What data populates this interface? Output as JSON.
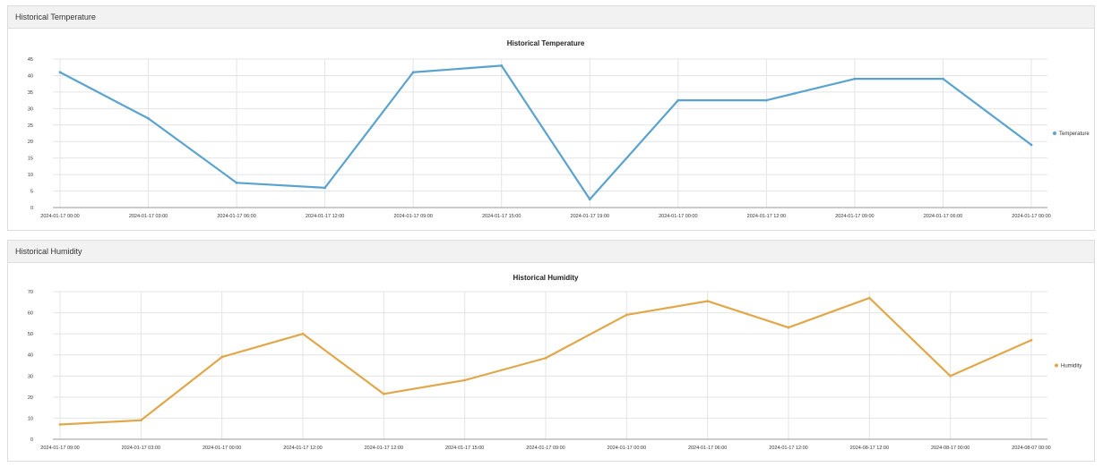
{
  "panels": {
    "temperature": {
      "header": "Historical Temperature"
    },
    "humidity": {
      "header": "Historical Humidity"
    }
  },
  "chart_data": [
    {
      "type": "line",
      "title": "Historical Temperature",
      "xlabel": "",
      "ylabel": "",
      "ylim": [
        0,
        45
      ],
      "yticks": [
        0,
        5,
        10,
        15,
        20,
        25,
        30,
        35,
        40,
        45
      ],
      "grid": true,
      "legend_position": "right",
      "categories": [
        "2024-01-17 00:00",
        "2024-01-17 03:00",
        "2024-01-17 06:00",
        "2024-01-17 12:00",
        "2024-01-17 09:00",
        "2024-01-17 15:00",
        "2024-01-17 19:00",
        "2024-01-17 00:00",
        "2024-01-17 12:00",
        "2024-01-17 09:00",
        "2024-01-17 06:00",
        "2024-01-17 00:00"
      ],
      "series": [
        {
          "name": "Temperature",
          "color": "#5ba3cf",
          "values": [
            41,
            27,
            7.5,
            6,
            41,
            43,
            2.5,
            32.5,
            32.5,
            39,
            39,
            19
          ]
        }
      ]
    },
    {
      "type": "line",
      "title": "Historical Humidity",
      "xlabel": "",
      "ylabel": "",
      "ylim": [
        0,
        70
      ],
      "yticks": [
        0,
        10,
        20,
        30,
        40,
        50,
        60,
        70
      ],
      "grid": true,
      "legend_position": "right",
      "categories": [
        "2024-01-17 09:00",
        "2024-01-17 03:00",
        "2024-01-17 00:00",
        "2024-01-17 12:00",
        "2024-01-17 12:00",
        "2024-01-17 15:00",
        "2024-01-17 09:00",
        "2024-01-17 00:00",
        "2024-01-17 06:00",
        "2024-01-17 12:00",
        "2024-08-17 12:00",
        "2024-08-17 00:00",
        "2024-08-07 00:00"
      ],
      "series": [
        {
          "name": "Humidity",
          "color": "#e0a84a",
          "values": [
            7,
            9,
            39,
            50,
            21.5,
            28,
            38.5,
            59,
            65.5,
            53,
            67,
            30,
            47
          ]
        }
      ]
    }
  ]
}
